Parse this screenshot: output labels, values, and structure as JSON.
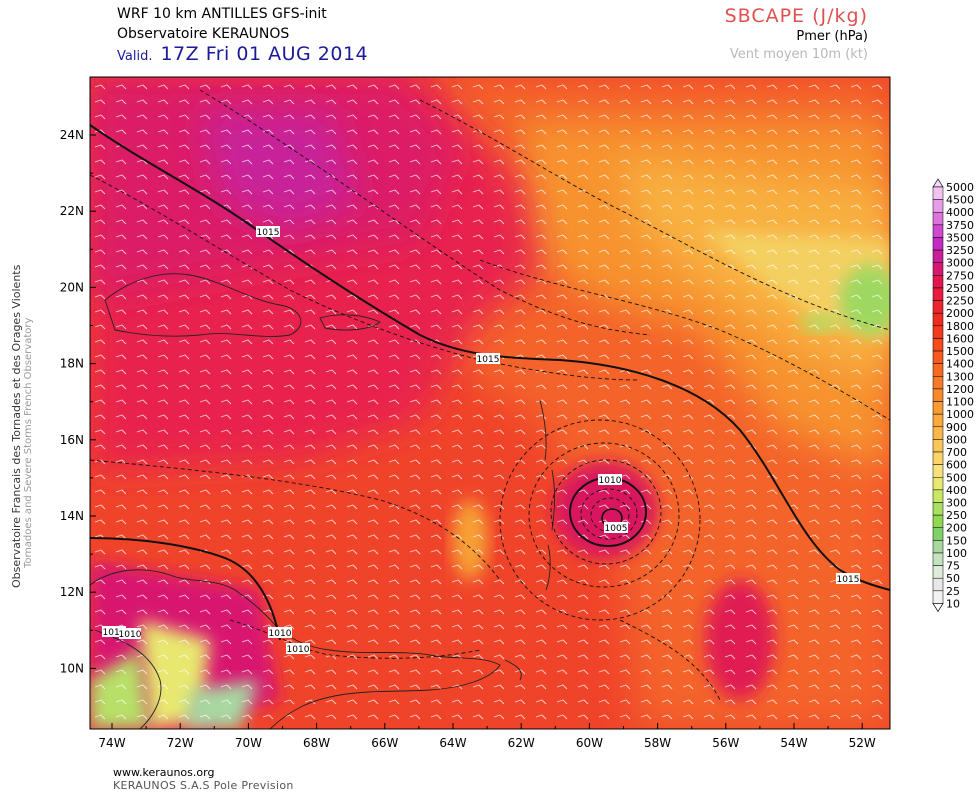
{
  "header": {
    "model_line": "WRF 10 km ANTILLES   GFS-init",
    "observatory": "Observatoire KERAUNOS",
    "valid_prefix": "Valid.",
    "valid_time": "17Z Fri 01 AUG 2014",
    "variable": "SBCAPE (J/kg)",
    "pressure": "Pmer (hPa)",
    "wind": "Vent moyen 10m (kt)"
  },
  "side_labels": {
    "line1": "Observatoire Francais des Tornades et des Orages Violents",
    "line2": "Tornadoes and Severe Storms French Observatory"
  },
  "axes": {
    "lat": [
      "24N",
      "22N",
      "20N",
      "18N",
      "16N",
      "14N",
      "12N",
      "10N"
    ],
    "lon": [
      "74W",
      "72W",
      "70W",
      "68W",
      "66W",
      "64W",
      "62W",
      "60W",
      "58W",
      "56W",
      "54W",
      "52W"
    ]
  },
  "isobars": {
    "l1": "1015",
    "l2": "1015",
    "l3": "1015",
    "l4": "1010",
    "l5": "1010",
    "l6": "1010",
    "l7": "1010",
    "l8": "1010",
    "l9": "1005"
  },
  "colorbar": {
    "levels": [
      "5000",
      "4500",
      "4000",
      "3750",
      "3500",
      "3250",
      "3000",
      "2750",
      "2500",
      "2250",
      "2000",
      "1800",
      "1600",
      "1500",
      "1400",
      "1300",
      "1200",
      "1100",
      "1000",
      "900",
      "800",
      "700",
      "600",
      "500",
      "400",
      "300",
      "250",
      "200",
      "150",
      "100",
      "75",
      "50",
      "25",
      "10"
    ],
    "colors": [
      "#f2c2f0",
      "#e89be6",
      "#dc74dc",
      "#d048d0",
      "#c42ac4",
      "#c8209a",
      "#d81870",
      "#e2174f",
      "#ea1a40",
      "#ee2430",
      "#f02c22",
      "#f43a1e",
      "#f54a1c",
      "#f65a1e",
      "#f76a22",
      "#f87a26",
      "#f98a2c",
      "#f99a34",
      "#faaa3c",
      "#fab848",
      "#fac658",
      "#fad468",
      "#f8e07a",
      "#e8e870",
      "#c8e864",
      "#a8e060",
      "#90d850",
      "#80d068",
      "#a8d8a0",
      "#c4e4c0",
      "#dcecd8",
      "#e8e8e8",
      "#f2f2f2"
    ]
  },
  "footer": {
    "url": "www.keraunos.org",
    "company": "KERAUNOS S.A.S Pole Prevision"
  }
}
